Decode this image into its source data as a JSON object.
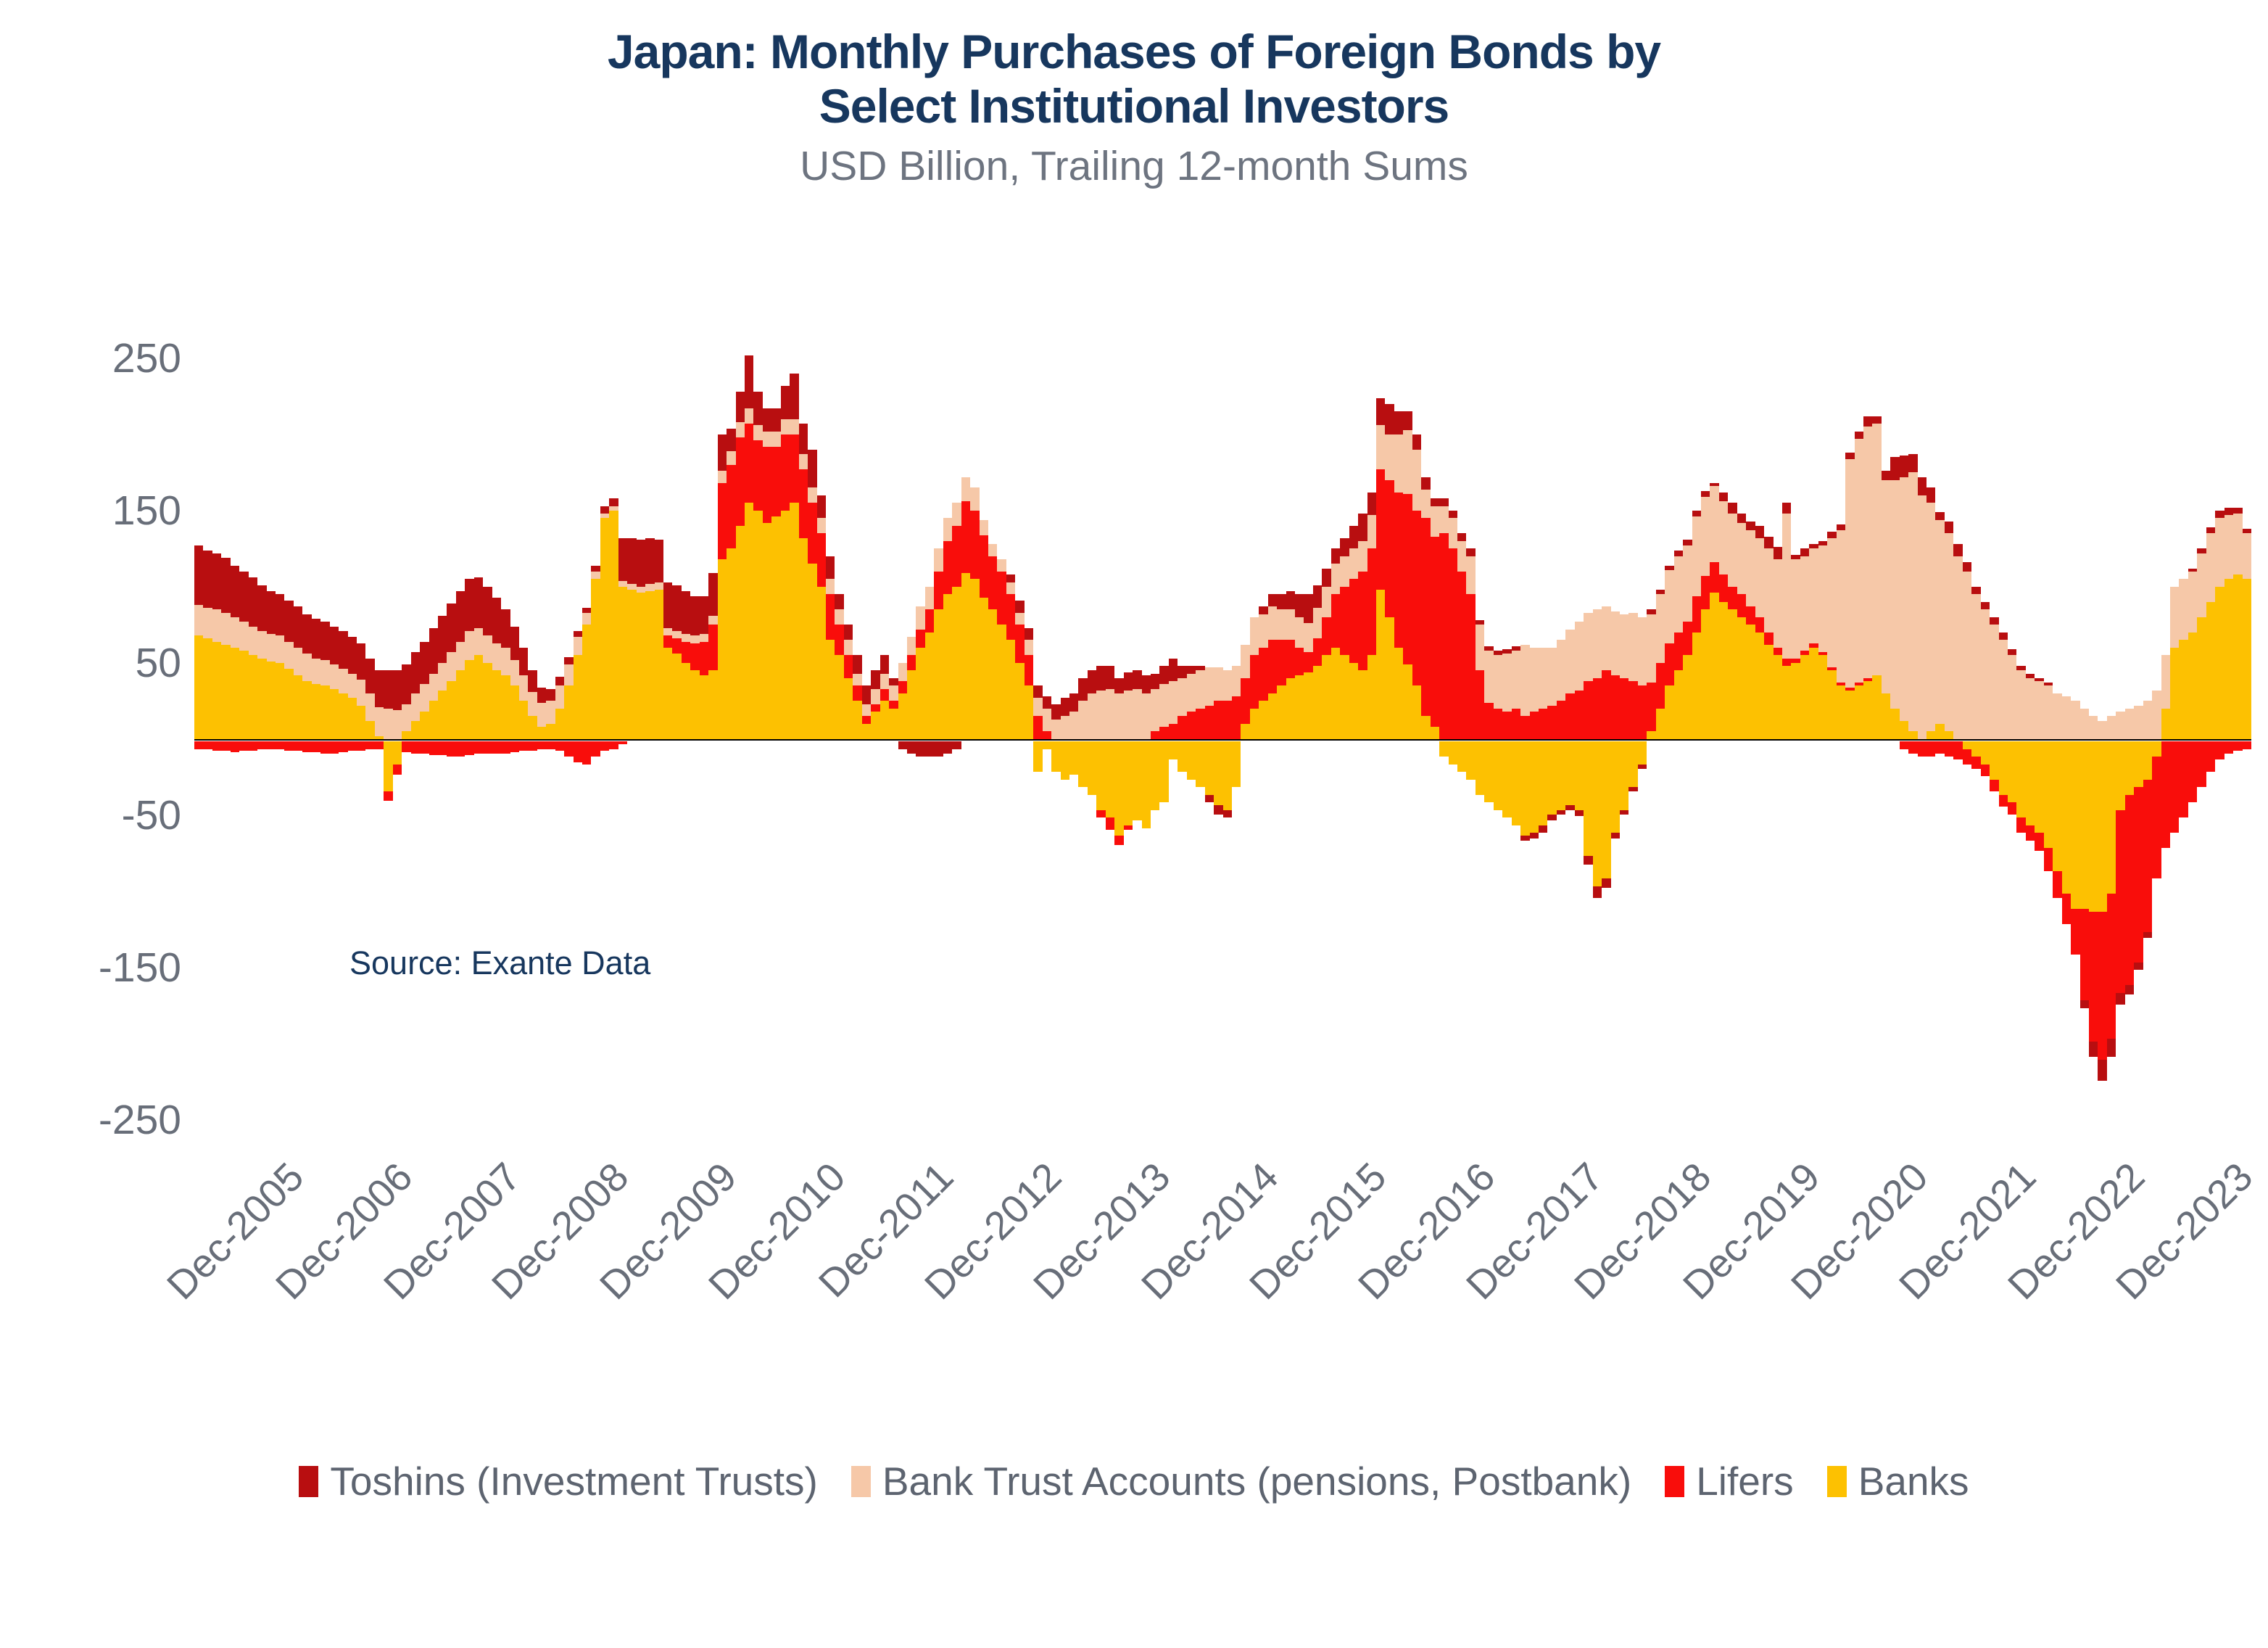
{
  "header": {
    "title_line1": "Japan: Monthly Purchases of Foreign Bonds by",
    "title_line2": "Select Institutional Investors",
    "subtitle": "USD Billion, Trailing 12-month Sums"
  },
  "source_note": "Source: Exante Data",
  "colors": {
    "title_navy": "#17375e",
    "axis_gray": "#686e79",
    "zero_line": "#000000",
    "toshins": "#b80e10",
    "bank_trust": "#f6c8a8",
    "lifers": "#f90d0b",
    "banks": "#fdc101"
  },
  "legend": {
    "items": [
      {
        "label": "Toshins (Investment Trusts)",
        "color": "#b80e10"
      },
      {
        "label": "Bank Trust Accounts (pensions, Postbank)",
        "color": "#f6c8a8"
      },
      {
        "label": "Lifers",
        "color": "#f90d0b"
      },
      {
        "label": "Banks",
        "color": "#fdc101"
      }
    ]
  },
  "chart_data": {
    "type": "bar",
    "stacked": true,
    "title": "Japan: Monthly Purchases of Foreign Bonds by Select Institutional Investors",
    "subtitle": "USD Billion, Trailing 12-month Sums",
    "ylabel": "USD Billion (trailing 12-month sums)",
    "xlabel": "",
    "grid": false,
    "legend_position": "bottom",
    "x_start_month": "2005-03",
    "x_end_month": "2024-02",
    "months_count": 228,
    "ylim": [
      -265,
      285
    ],
    "y_ticks": [
      250,
      150,
      50,
      -50,
      -150,
      -250
    ],
    "x_tick_labels": [
      "Dec-2005",
      "Dec-2006",
      "Dec-2007",
      "Dec-2008",
      "Dec-2009",
      "Dec-2010",
      "Dec-2011",
      "Dec-2012",
      "Dec-2013",
      "Dec-2014",
      "Dec-2015",
      "Dec-2016",
      "Dec-2017",
      "Dec-2018",
      "Dec-2019",
      "Dec-2020",
      "Dec-2021",
      "Dec-2022",
      "Dec-2023"
    ],
    "x_tick_indexes": [
      9,
      21,
      33,
      45,
      57,
      69,
      81,
      93,
      105,
      117,
      129,
      141,
      153,
      165,
      177,
      189,
      201,
      213,
      225
    ],
    "stack_order_bottom_to_top": [
      "Banks",
      "Lifers",
      "Bank Trust Accounts (pensions, Postbank)",
      "Toshins (Investment Trusts)"
    ],
    "series": [
      {
        "name": "Banks",
        "color": "#fdc101",
        "values": [
          68,
          66,
          64,
          62,
          60,
          58,
          55,
          53,
          51,
          50,
          46,
          42,
          38,
          36,
          35,
          33,
          30,
          27,
          22,
          12,
          2,
          -33,
          -15,
          5,
          12,
          18,
          25,
          32,
          38,
          45,
          52,
          55,
          50,
          45,
          42,
          35,
          25,
          15,
          8,
          10,
          20,
          35,
          55,
          75,
          105,
          145,
          150,
          100,
          98,
          96,
          97,
          98,
          60,
          56,
          50,
          45,
          42,
          45,
          118,
          125,
          140,
          155,
          150,
          142,
          146,
          150,
          155,
          132,
          115,
          100,
          65,
          55,
          40,
          25,
          10,
          18,
          25,
          20,
          30,
          45,
          60,
          70,
          85,
          95,
          100,
          109,
          105,
          93,
          85,
          75,
          65,
          50,
          35,
          -20,
          -5,
          -20,
          -25,
          -22,
          -30,
          -35,
          -45,
          -50,
          -62,
          -55,
          -52,
          -57,
          -45,
          -40,
          -12,
          -20,
          -25,
          -30,
          -35,
          -42,
          -45,
          -30,
          10,
          20,
          25,
          30,
          35,
          40,
          42,
          44,
          48,
          55,
          60,
          55,
          50,
          45,
          55,
          98,
          80,
          60,
          49,
          35,
          15,
          8,
          -10,
          -15,
          -20,
          -25,
          -35,
          -40,
          -45,
          -50,
          -55,
          -62,
          -60,
          -55,
          -48,
          -45,
          -42,
          -45,
          -75,
          -95,
          -90,
          -60,
          -45,
          -30,
          -15,
          5,
          20,
          35,
          45,
          55,
          70,
          85,
          96,
          90,
          85,
          80,
          75,
          70,
          62,
          55,
          48,
          50,
          55,
          60,
          55,
          45,
          35,
          32,
          35,
          38,
          42,
          30,
          20,
          12,
          5,
          0,
          5,
          10,
          5,
          0,
          -5,
          -10,
          -15,
          -25,
          -35,
          -40,
          -50,
          -55,
          -60,
          -70,
          -85,
          -100,
          -110,
          -110,
          -112,
          -112,
          -100,
          -45,
          -35,
          -30,
          -25,
          -10,
          20,
          60,
          65,
          70,
          80,
          90,
          100,
          105,
          108,
          105
        ]
      },
      {
        "name": "Lifers",
        "color": "#f90d0b",
        "values": [
          -5,
          -5,
          -6,
          -6,
          -7,
          -6,
          -6,
          -5,
          -5,
          -5,
          -6,
          -6,
          -7,
          -7,
          -8,
          -8,
          -7,
          -6,
          -6,
          -5,
          -5,
          -6,
          -7,
          -7,
          -8,
          -8,
          -9,
          -9,
          -10,
          -10,
          -9,
          -8,
          -8,
          -8,
          -8,
          -7,
          -6,
          -6,
          -5,
          -5,
          -6,
          -10,
          -14,
          -15,
          -10,
          -6,
          -5,
          -2,
          0,
          0,
          0,
          0,
          8,
          10,
          14,
          18,
          22,
          30,
          50,
          55,
          58,
          52,
          46,
          50,
          46,
          50,
          45,
          45,
          40,
          35,
          30,
          20,
          15,
          10,
          5,
          5,
          8,
          5,
          8,
          10,
          12,
          15,
          25,
          35,
          40,
          47,
          45,
          41,
          35,
          35,
          30,
          25,
          20,
          15,
          5,
          0,
          0,
          0,
          0,
          0,
          -5,
          -8,
          -6,
          -3,
          0,
          0,
          5,
          8,
          10,
          15,
          18,
          20,
          22,
          25,
          25,
          28,
          30,
          35,
          35,
          35,
          30,
          25,
          18,
          13,
          18,
          25,
          35,
          45,
          55,
          65,
          70,
          79,
          90,
          102,
          112,
          115,
          130,
          125,
          135,
          125,
          110,
          95,
          45,
          24,
          20,
          18,
          20,
          15,
          18,
          20,
          22,
          25,
          30,
          32,
          38,
          40,
          45,
          42,
          40,
          38,
          35,
          32,
          30,
          28,
          25,
          22,
          24,
          22,
          20,
          18,
          15,
          15,
          12,
          10,
          8,
          5,
          5,
          3,
          3,
          3,
          2,
          2,
          2,
          2,
          2,
          2,
          0,
          0,
          0,
          -5,
          -8,
          -10,
          -10,
          -8,
          -10,
          -12,
          -10,
          -8,
          -8,
          -8,
          -8,
          -8,
          -10,
          -10,
          -12,
          -15,
          -18,
          -20,
          -30,
          -60,
          -85,
          -97,
          -95,
          -120,
          -125,
          -115,
          -100,
          -80,
          -70,
          -60,
          -50,
          -40,
          -30,
          -20,
          -12,
          -8,
          -6,
          -5
        ]
      },
      {
        "name": "Bank Trust Accounts (pensions, Postbank)",
        "color": "#f6c8a8",
        "values": [
          20,
          20,
          21,
          21,
          20,
          19,
          19,
          18,
          18,
          18,
          18,
          18,
          18,
          17,
          17,
          16,
          16,
          16,
          17,
          18,
          19,
          20,
          19,
          18,
          18,
          18,
          18,
          18,
          19,
          19,
          19,
          18,
          18,
          18,
          18,
          17,
          17,
          16,
          16,
          15,
          15,
          14,
          12,
          8,
          5,
          3,
          3,
          4,
          4,
          4,
          5,
          5,
          5,
          5,
          5,
          5,
          5,
          6,
          8,
          9,
          10,
          10,
          10,
          10,
          10,
          10,
          10,
          10,
          10,
          10,
          10,
          10,
          10,
          8,
          8,
          10,
          10,
          10,
          12,
          12,
          15,
          15,
          15,
          15,
          15,
          16,
          15,
          10,
          8,
          8,
          8,
          8,
          10,
          12,
          15,
          13,
          15,
          18,
          25,
          30,
          32,
          33,
          30,
          32,
          33,
          30,
          28,
          28,
          28,
          25,
          25,
          25,
          25,
          22,
          20,
          20,
          22,
          25,
          22,
          22,
          20,
          20,
          20,
          19,
          20,
          20,
          20,
          20,
          20,
          20,
          22,
          29,
          30,
          38,
          42,
          40,
          19,
          20,
          18,
          20,
          20,
          25,
          30,
          34,
          35,
          38,
          38,
          47,
          42,
          40,
          38,
          40,
          42,
          45,
          45,
          45,
          42,
          42,
          42,
          45,
          45,
          45,
          45,
          48,
          50,
          50,
          52,
          52,
          50,
          48,
          48,
          47,
          50,
          52,
          55,
          58,
          95,
          65,
          62,
          62,
          70,
          85,
          100,
          150,
          160,
          165,
          165,
          140,
          150,
          160,
          170,
          160,
          150,
          134,
          130,
          120,
          110,
          95,
          85,
          75,
          65,
          55,
          45,
          40,
          38,
          35,
          30,
          28,
          25,
          20,
          15,
          12,
          15,
          18,
          20,
          22,
          25,
          32,
          35,
          40,
          40,
          40,
          42,
          45,
          45,
          42,
          40,
          30
        ]
      },
      {
        "name": "Toshins (Investment Trusts)",
        "color": "#b80e10",
        "values": [
          39,
          38,
          37,
          36,
          34,
          33,
          32,
          30,
          28,
          27,
          27,
          27,
          26,
          26,
          25,
          25,
          25,
          24,
          24,
          23,
          24,
          25,
          26,
          26,
          27,
          28,
          30,
          31,
          32,
          33,
          34,
          33,
          32,
          30,
          25,
          22,
          18,
          14,
          10,
          8,
          6,
          5,
          4,
          3,
          4,
          5,
          5,
          28,
          30,
          31,
          30,
          28,
          30,
          30,
          28,
          26,
          25,
          28,
          24,
          15,
          20,
          35,
          22,
          15,
          15,
          22,
          30,
          20,
          25,
          15,
          15,
          10,
          10,
          12,
          12,
          12,
          12,
          5,
          -5,
          -8,
          -10,
          -10,
          -10,
          -8,
          -5,
          0,
          0,
          0,
          0,
          0,
          5,
          8,
          8,
          8,
          8,
          10,
          12,
          12,
          15,
          15,
          16,
          15,
          10,
          12,
          12,
          12,
          10,
          12,
          15,
          8,
          5,
          3,
          -5,
          -6,
          -5,
          0,
          0,
          0,
          5,
          8,
          10,
          12,
          15,
          19,
          15,
          12,
          10,
          12,
          15,
          18,
          15,
          18,
          20,
          15,
          12,
          10,
          8,
          5,
          5,
          5,
          5,
          5,
          3,
          3,
          3,
          3,
          3,
          -3,
          -4,
          -5,
          -4,
          -3,
          -3,
          -4,
          -6,
          -8,
          -6,
          -4,
          -3,
          -3,
          -3,
          3,
          3,
          3,
          4,
          4,
          4,
          4,
          2,
          6,
          7,
          6,
          6,
          8,
          8,
          8,
          7,
          3,
          5,
          3,
          3,
          4,
          4,
          4,
          5,
          7,
          5,
          6,
          15,
          14,
          12,
          12,
          10,
          5,
          8,
          8,
          6,
          5,
          5,
          5,
          5,
          4,
          3,
          3,
          2,
          2,
          0,
          0,
          0,
          -5,
          -10,
          -14,
          -12,
          -8,
          -6,
          -5,
          -4,
          0,
          0,
          0,
          0,
          2,
          3,
          4,
          5,
          5,
          4,
          3
        ]
      }
    ]
  }
}
